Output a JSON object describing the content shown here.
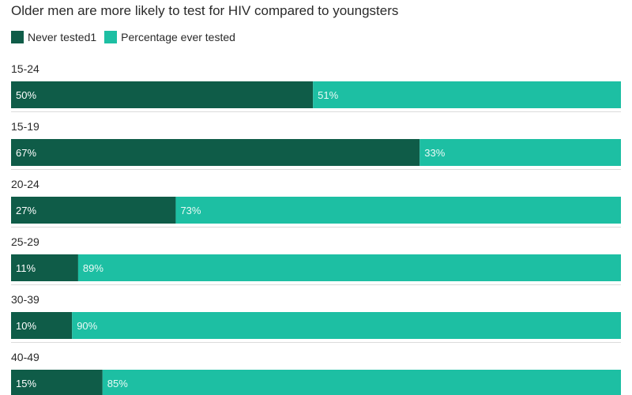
{
  "chart_data": {
    "type": "bar",
    "orientation": "horizontal",
    "stacked": true,
    "title": "Older men are more likely to test for HIV compared to youngsters",
    "categories": [
      "15-24",
      "15-19",
      "20-24",
      "25-29",
      "30-39",
      "40-49"
    ],
    "series": [
      {
        "name": "Never tested1",
        "color": "#0f5c48",
        "values": [
          50,
          67,
          27,
          11,
          10,
          15
        ],
        "labels": [
          "50%",
          "67%",
          "27%",
          "11%",
          "10%",
          "15%"
        ]
      },
      {
        "name": "Percentage ever tested",
        "color": "#1dbfa3",
        "values": [
          51,
          33,
          73,
          89,
          90,
          85
        ],
        "labels": [
          "51%",
          "33%",
          "73%",
          "89%",
          "90%",
          "85%"
        ]
      }
    ],
    "legend_position": "top-left",
    "grid": false
  }
}
